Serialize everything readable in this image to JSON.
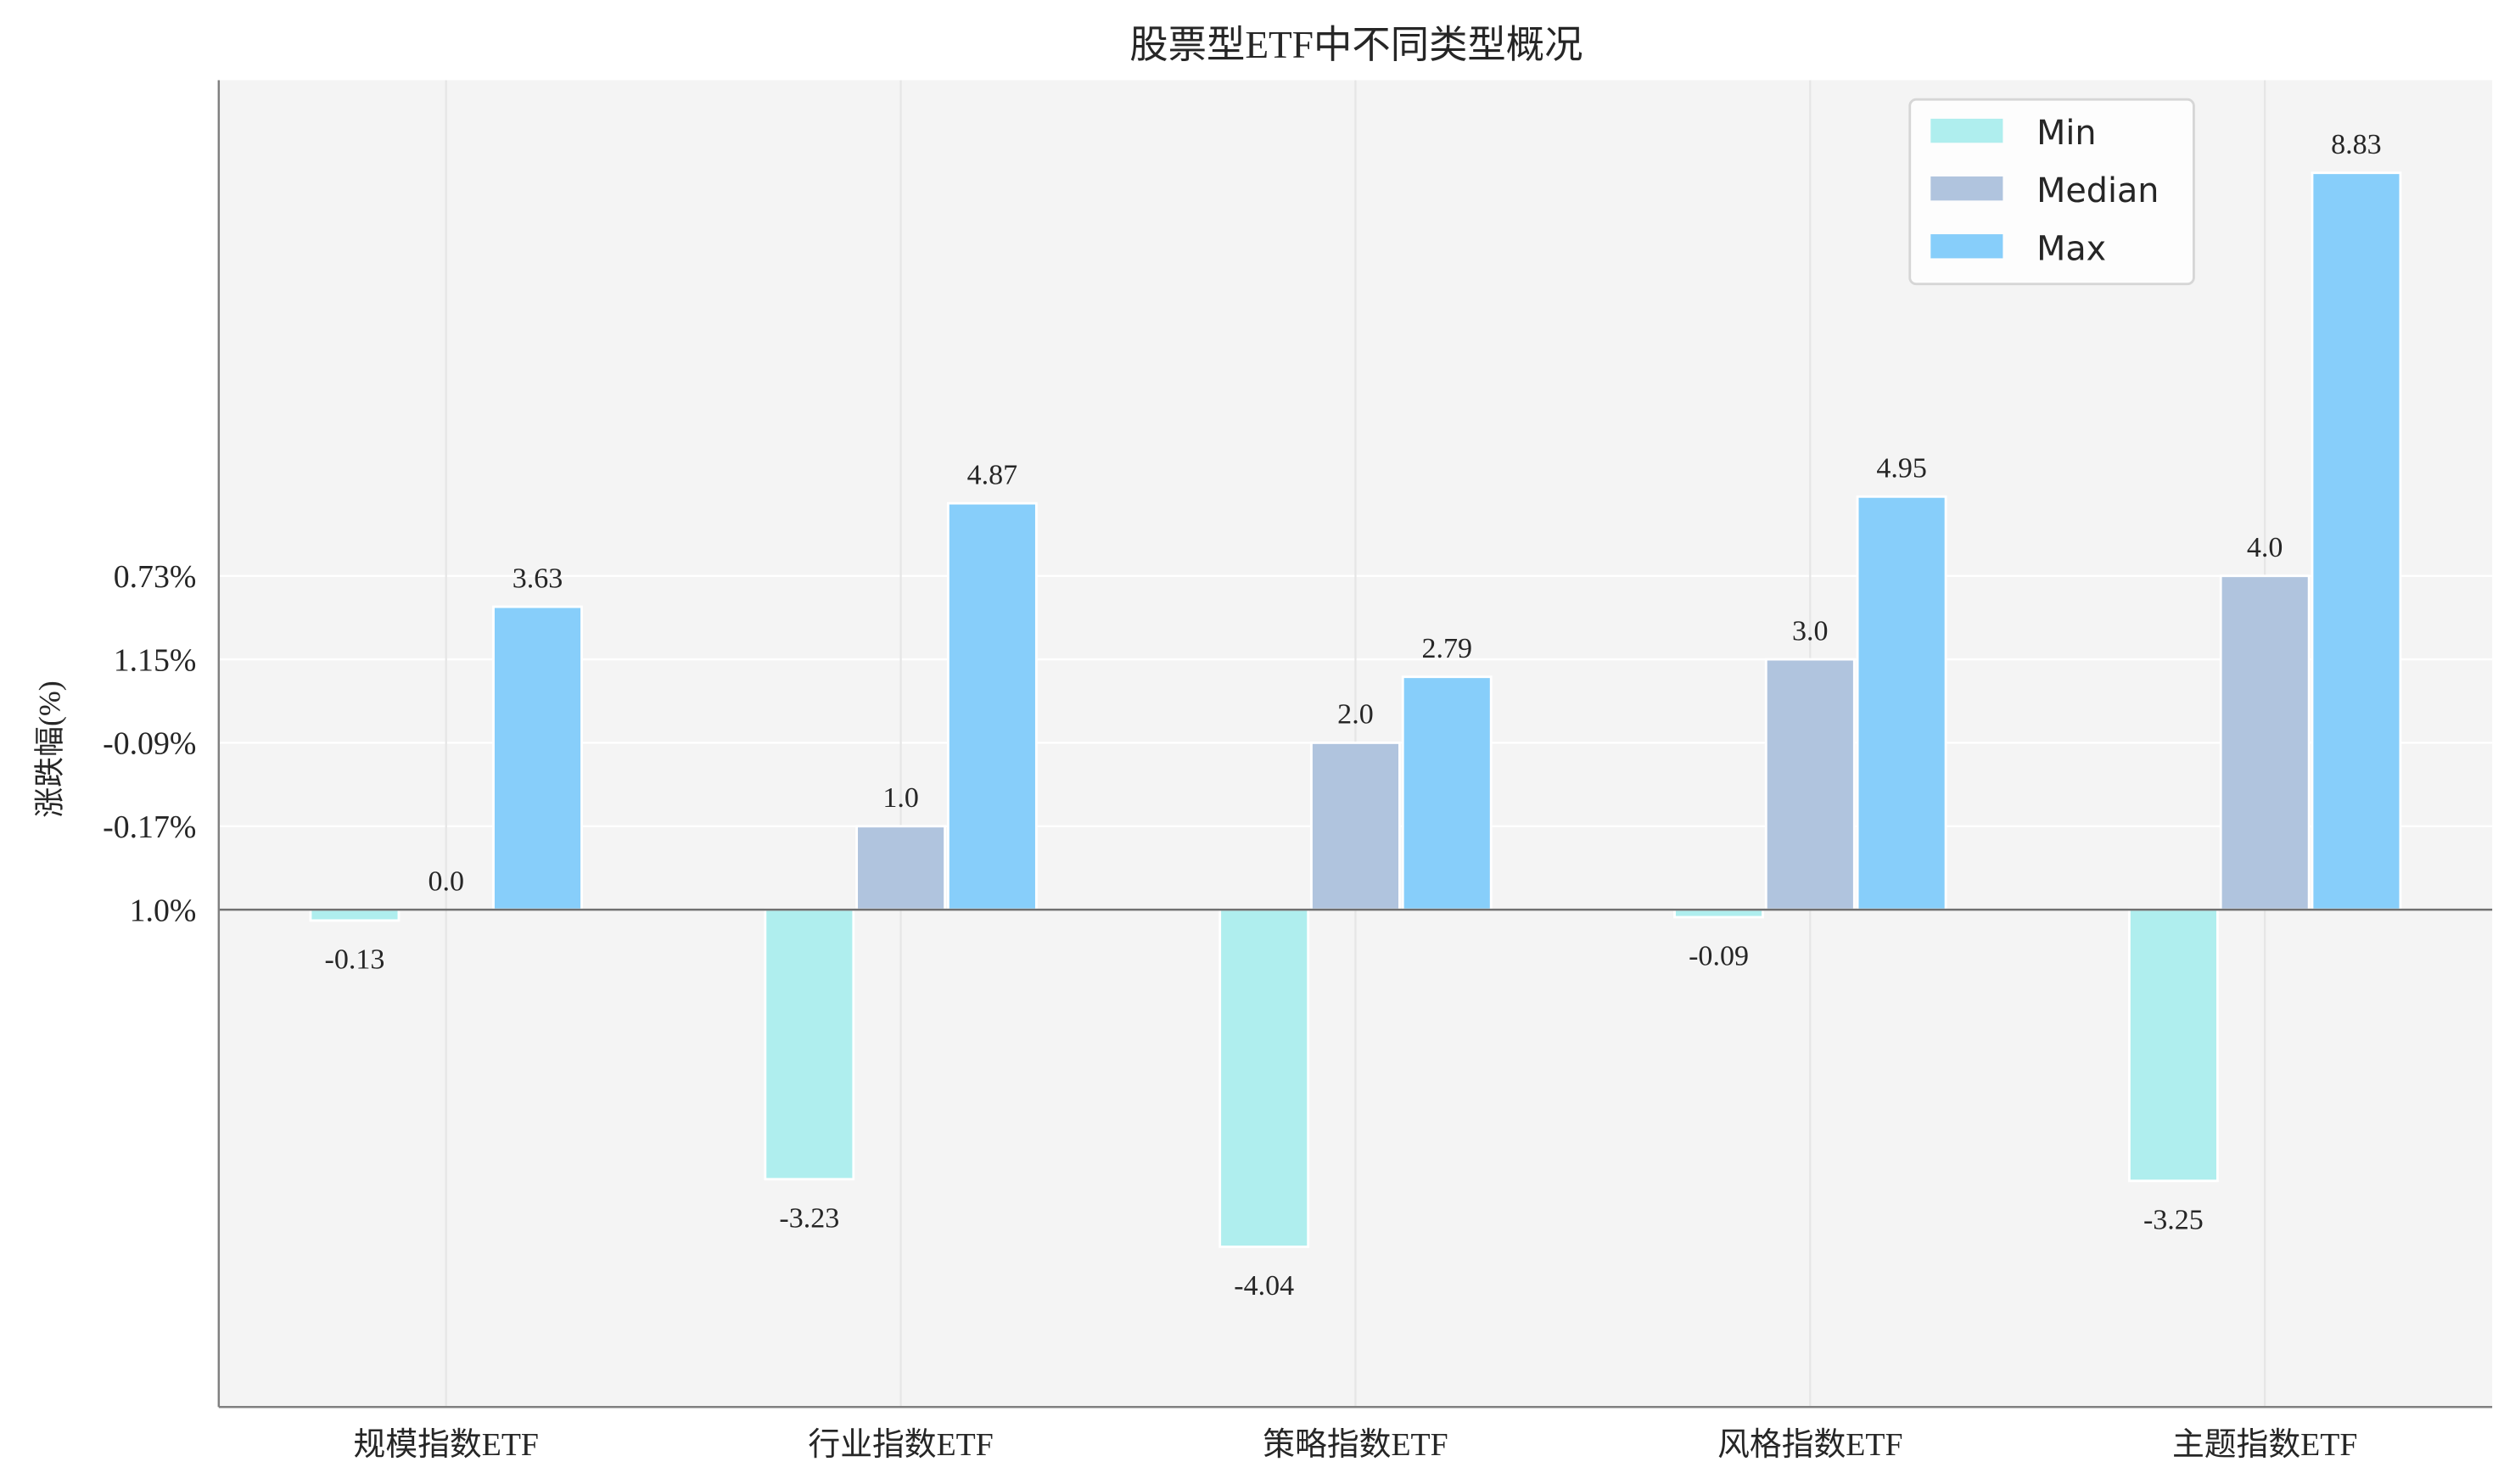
{
  "chart_data": {
    "type": "bar",
    "title": "股票型ETF中不同类型概况",
    "xlabel": "",
    "ylabel": "涨跌幅(%)",
    "categories": [
      "规模指数ETF",
      "行业指数ETF",
      "策略指数ETF",
      "风格指数ETF",
      "主题指数ETF"
    ],
    "series": [
      {
        "name": "Min",
        "color": "#AFEEEE",
        "values": [
          -0.13,
          -3.23,
          -4.04,
          -0.09,
          -3.25
        ]
      },
      {
        "name": "Median",
        "color": "#B0C4DE",
        "values": [
          0.0,
          1.0,
          2.0,
          3.0,
          4.0
        ]
      },
      {
        "name": "Max",
        "color": "#87CEFA",
        "values": [
          3.63,
          4.87,
          2.79,
          4.95,
          8.83
        ]
      }
    ],
    "yticks": [
      {
        "value": 0,
        "label": "1.0%"
      },
      {
        "value": 1,
        "label": "-0.17%"
      },
      {
        "value": 2,
        "label": "-0.09%"
      },
      {
        "value": 3,
        "label": "1.15%"
      },
      {
        "value": 4,
        "label": "0.73%"
      }
    ],
    "ylim": [
      -5.96,
      9.94
    ],
    "grid": true,
    "legend_position": "top-right",
    "background_color": "#F4F4F4"
  }
}
